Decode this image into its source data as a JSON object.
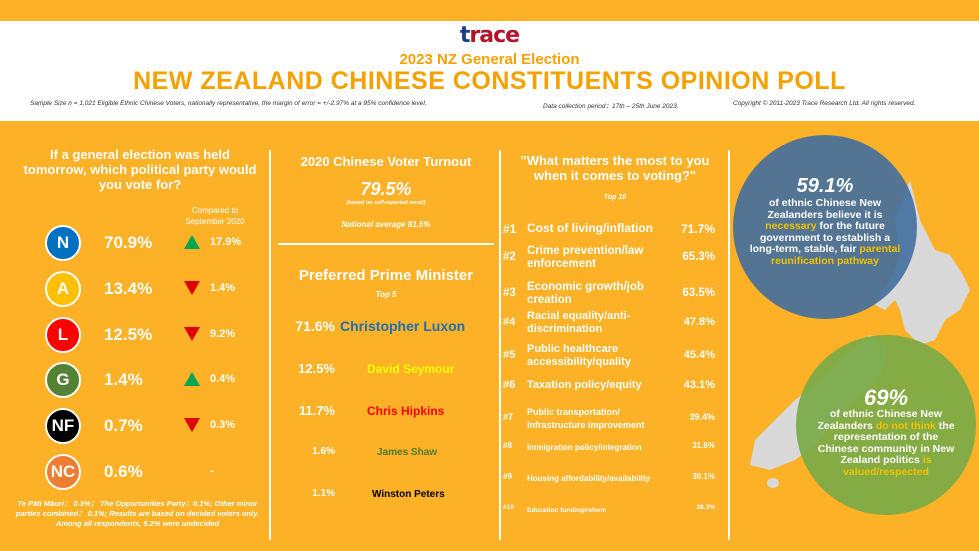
{
  "header": {
    "logo_text": "trace",
    "subtitle": "2023 NZ General Election",
    "title": "NEW ZEALAND CHINESE CONSTITUENTS OPINION POLL",
    "sample_note": "Sample Size n = 1,021 Eligible Ethnic Chinese Voters, nationally representative, the margin of error = +/-2.97%  at a 95%  confidence level.",
    "collection_period": "Data collection period：17th – 25th June 2023.",
    "copyright": "Copyright © 2011-2023 Trace Research Ltd. All rights reserved."
  },
  "party_vote": {
    "question": "If a general election was held tomorrow, which political party would you vote for?",
    "compared_label": "Compared to September 2020",
    "parties": [
      {
        "code": "N",
        "pct": "70.9%",
        "direction": "up",
        "change": "17.9%",
        "color": "#0070C0"
      },
      {
        "code": "A",
        "pct": "13.4%",
        "direction": "down",
        "change": "1.4%",
        "color": "#FFC000"
      },
      {
        "code": "L",
        "pct": "12.5%",
        "direction": "down",
        "change": "9.2%",
        "color": "#FF0000"
      },
      {
        "code": "G",
        "pct": "1.4%",
        "direction": "up",
        "change": "0.4%",
        "color": "#548235"
      },
      {
        "code": "NF",
        "pct": "0.7%",
        "direction": "down",
        "change": "0.3%",
        "color": "#000000"
      },
      {
        "code": "NC",
        "pct": "0.6%",
        "direction": "none",
        "change": "-",
        "color": "#ED7D31"
      }
    ],
    "footnote": "Te Pāti Māori： 0.3%； The Opportunities Party：0.1%; Other minor parties combined： 0.1%; Results are based on decided voters only. Among all respondents, 5.2% were undecided"
  },
  "turnout": {
    "title": "2020 Chinese Voter Turnout",
    "value": "79.5%",
    "note": "(based on self-reported recall)",
    "national": "National  average  81.5%"
  },
  "preferred_pm": {
    "title": "Preferred Prime Minister",
    "subtitle": "Top 5",
    "candidates": [
      {
        "pct": "71.6%",
        "name": "Christopher Luxon",
        "color": "#1F6EB5"
      },
      {
        "pct": "12.5%",
        "name": "David  Seymour",
        "color": "#FFFF00"
      },
      {
        "pct": "11.7%",
        "name": "Chris Hipkins",
        "color": "#FF0000"
      },
      {
        "pct": "1.6%",
        "name": "James Shaw",
        "color": "#4E7A2E"
      },
      {
        "pct": "1.1%",
        "name": "Winston Peters",
        "color": "#000000"
      }
    ]
  },
  "issues": {
    "title": "\"What matters the most to you when it comes to voting?\"",
    "subtitle": "Top 10",
    "items": [
      {
        "rank": "#1",
        "label": "Cost of living/inflation",
        "value": "71.7%"
      },
      {
        "rank": "#2",
        "label": "Crime prevention/law enforcement",
        "value": "65.3%"
      },
      {
        "rank": "#3",
        "label": "Economic growth/job creation",
        "value": "63.5%"
      },
      {
        "rank": "#4",
        "label": "Racial equality/anti-discrimination",
        "value": "47.8%"
      },
      {
        "rank": "#5",
        "label": "Public healthcare accessibility/quality",
        "value": "45.4%"
      },
      {
        "rank": "#6",
        "label": "Taxation policy/equity",
        "value": "43.1%"
      },
      {
        "rank": "#7",
        "label": "Public transportation/ infrastructure  improvement",
        "value": "39.4%"
      },
      {
        "rank": "#8",
        "label": "Immigration policy/integration",
        "value": "31.6%"
      },
      {
        "rank": "#9",
        "label": "Housing affordability/availability",
        "value": "30.1%"
      },
      {
        "rank": "#10",
        "label": "Education  funding/reform",
        "value": "28.3%"
      }
    ]
  },
  "stat_reunification": {
    "value": "59.1%",
    "text_a": "of ethnic Chinese New Zealanders believe it is ",
    "hl_a": "necessary",
    "text_b": " for the future government to establish a long-term, stable, fair ",
    "hl_b": "parental reunification pathway",
    "color": "#4A78A8"
  },
  "stat_representation": {
    "value": "69%",
    "text_a": "of ethnic Chinese New Zealanders ",
    "hl_a": "do not think",
    "text_b": " the representation of the Chinese community in New Zealand politics ",
    "hl_b": "is valued/respected",
    "color": "#7FAA45"
  }
}
